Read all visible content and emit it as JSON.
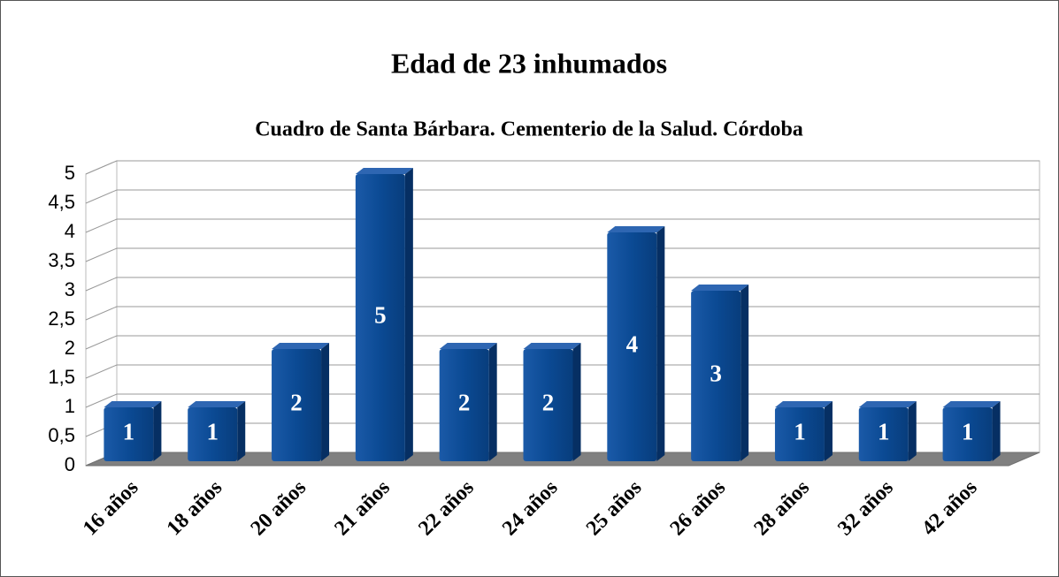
{
  "chart_data": {
    "type": "bar",
    "title": "Edad de 23 inhumados",
    "subtitle": "Cuadro de Santa Bárbara. Cementerio de la Salud. Córdoba",
    "categories": [
      "16 años",
      "18 años",
      "20 años",
      "21 años",
      "22 años",
      "24 años",
      "25 años",
      "26 años",
      "28 años",
      "32 años",
      "42 años"
    ],
    "values": [
      1,
      1,
      2,
      5,
      2,
      2,
      4,
      3,
      1,
      1,
      1
    ],
    "color": "#0b4a94",
    "ylim": [
      0,
      5
    ],
    "yticks": [
      0,
      {
        "value": 0.5,
        "label": "0,5"
      },
      1,
      {
        "value": 1.5,
        "label": "1,5"
      },
      2,
      {
        "value": 2.5,
        "label": "2,5"
      },
      3,
      {
        "value": 3.5,
        "label": "3,5"
      },
      4,
      {
        "value": 4.5,
        "label": "4,5"
      },
      5
    ],
    "grid": true
  }
}
